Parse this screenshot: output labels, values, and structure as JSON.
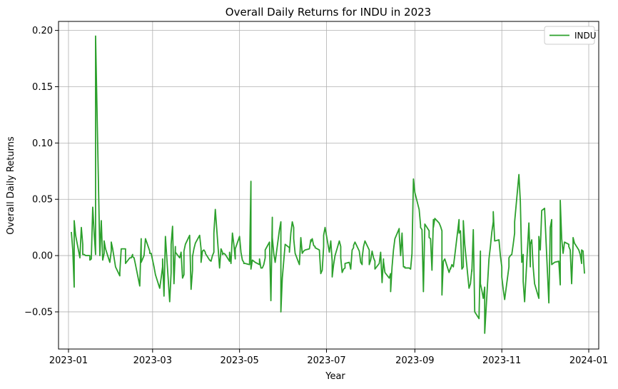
{
  "chart_data": {
    "type": "line",
    "title": "Overall Daily Returns for INDU in 2023",
    "xlabel": "Year",
    "ylabel": "Overall Daily Returns",
    "grid": true,
    "legend_position": "top-right",
    "x_start": "2023-01-03",
    "x_end": "2023-12-29",
    "xlim": [
      "2022-12-25",
      "2024-01-08"
    ],
    "ylim": [
      -0.083,
      0.208
    ],
    "x_ticks": [
      {
        "date": "2023-01-01",
        "label": "2023-01"
      },
      {
        "date": "2023-03-01",
        "label": "2023-03"
      },
      {
        "date": "2023-05-01",
        "label": "2023-05"
      },
      {
        "date": "2023-07-01",
        "label": "2023-07"
      },
      {
        "date": "2023-09-01",
        "label": "2023-09"
      },
      {
        "date": "2023-11-01",
        "label": "2023-11"
      },
      {
        "date": "2024-01-01",
        "label": "2024-01"
      }
    ],
    "y_ticks": [
      {
        "value": -0.05,
        "label": "−0.05"
      },
      {
        "value": 0.0,
        "label": "0.00"
      },
      {
        "value": 0.05,
        "label": "0.05"
      },
      {
        "value": 0.1,
        "label": "0.10"
      },
      {
        "value": 0.15,
        "label": "0.15"
      },
      {
        "value": 0.2,
        "label": "0.20"
      }
    ],
    "series": [
      {
        "name": "INDU",
        "color": "#2ca02c",
        "values": [
          0.021,
          0.005,
          -0.028,
          0.031,
          0.018,
          -0.002,
          0.025,
          0.01,
          0.001,
          0.001,
          0.0,
          0.0,
          -0.004,
          -0.003,
          0.043,
          0.02,
          0.001,
          0.195,
          0.0,
          0.031,
          -0.004,
          0.002,
          0.013,
          0.006,
          -0.006,
          0.004,
          0.012,
          0.006,
          -0.002,
          -0.01,
          -0.018,
          -0.015,
          0.006,
          0.006,
          0.006,
          0.006,
          -0.007,
          -0.002,
          -0.002,
          0.001,
          -0.001,
          -0.002,
          -0.008,
          -0.027,
          0.015,
          -0.006,
          -0.003,
          0.0,
          0.015,
          0.004,
          0.002,
          0.002,
          -0.004,
          -0.01,
          -0.01,
          -0.017,
          -0.029,
          -0.02,
          -0.01,
          -0.003,
          -0.036,
          0.017,
          -0.041,
          -0.015,
          0.01,
          0.026,
          -0.025,
          0.008,
          0.003,
          -0.002,
          0.003,
          -0.02,
          -0.017,
          0.004,
          0.01,
          0.018,
          -0.03,
          -0.013,
          -0.001,
          0.006,
          0.011,
          0.018,
          0.006,
          -0.006,
          0.004,
          0.005,
          0.003,
          0.002,
          -0.004,
          -0.005,
          0.0,
          0.003,
          0.02,
          0.041,
          -0.011,
          0.006,
          0.003,
          0.001,
          0.002,
          0.001,
          -0.005,
          0.003,
          -0.007,
          0.02,
          0.01,
          -0.003,
          0.006,
          0.017,
          0.003,
          -0.004,
          -0.006,
          -0.007,
          -0.007,
          -0.008,
          0.066,
          -0.012,
          -0.004,
          -0.005,
          -0.006,
          -0.008,
          -0.003,
          -0.011,
          -0.011,
          -0.008,
          -0.002,
          0.005,
          0.012,
          -0.04,
          0.034,
          0.016,
          0.002,
          -0.006,
          0.023,
          0.03,
          -0.05,
          -0.02,
          -0.005,
          0.01,
          0.007,
          0.003,
          0.02,
          0.03,
          0.025,
          0.015,
          0.002,
          -0.008,
          0.016,
          0.002,
          0.002,
          0.004,
          0.005,
          0.006,
          0.014,
          0.012,
          0.015,
          0.009,
          0.008,
          0.007,
          0.005,
          -0.016,
          -0.013,
          0.008,
          0.018,
          0.025,
          0.003,
          0.013,
          -0.005,
          -0.019,
          -0.008,
          0.0,
          0.013,
          0.008,
          -0.002,
          -0.015,
          -0.012,
          -0.011,
          -0.007,
          -0.006,
          -0.012,
          0.005,
          0.007,
          0.009,
          0.012,
          0.004,
          -0.006,
          -0.008,
          -0.002,
          0.008,
          0.013,
          0.005,
          -0.008,
          -0.004,
          0.004,
          -0.002,
          -0.005,
          -0.012,
          -0.007,
          0.003,
          -0.024,
          -0.003,
          -0.005,
          -0.015,
          -0.02,
          -0.016,
          -0.032,
          -0.01,
          0.005,
          0.015,
          0.024,
          0.02,
          0.0,
          0.02,
          -0.01,
          -0.01,
          -0.011,
          -0.011,
          -0.012,
          0.002,
          0.003,
          0.068,
          0.056,
          0.041,
          0.027,
          0.025,
          0.023,
          -0.032,
          0.028,
          0.022,
          0.016,
          0.015,
          -0.013,
          0.032,
          0.025,
          0.033,
          0.029,
          0.026,
          0.022,
          -0.035,
          -0.005,
          -0.003,
          -0.015,
          -0.011,
          -0.012,
          -0.008,
          -0.01,
          0.0,
          0.032,
          0.02,
          0.022,
          -0.012,
          -0.01,
          0.031,
          0.01,
          -0.029,
          -0.025,
          -0.012,
          -0.014,
          0.023,
          -0.05,
          -0.056,
          0.004,
          -0.025,
          -0.031,
          -0.038,
          -0.028,
          -0.069,
          -0.003,
          0.008,
          0.021,
          0.03,
          0.039,
          0.013,
          0.014,
          0.0,
          -0.01,
          -0.019,
          -0.03,
          -0.039,
          -0.01,
          -0.002,
          0.0,
          0.001,
          0.01,
          0.02,
          0.03,
          0.072,
          0.048,
          -0.006,
          0.001,
          -0.023,
          -0.041,
          0.029,
          -0.01,
          0.01,
          0.014,
          -0.01,
          -0.025,
          -0.038,
          0.017,
          0.005,
          0.04,
          0.041,
          0.042,
          0.042,
          -0.042,
          0.025,
          0.032,
          -0.008,
          -0.007,
          -0.006,
          -0.005,
          -0.026,
          0.049,
          0.015,
          0.002,
          0.012,
          0.01,
          0.008,
          0.005,
          -0.025,
          0.01,
          0.016,
          0.011,
          0.005,
          0.001,
          -0.007,
          0.005,
          0.004,
          -0.016
        ]
      }
    ]
  }
}
